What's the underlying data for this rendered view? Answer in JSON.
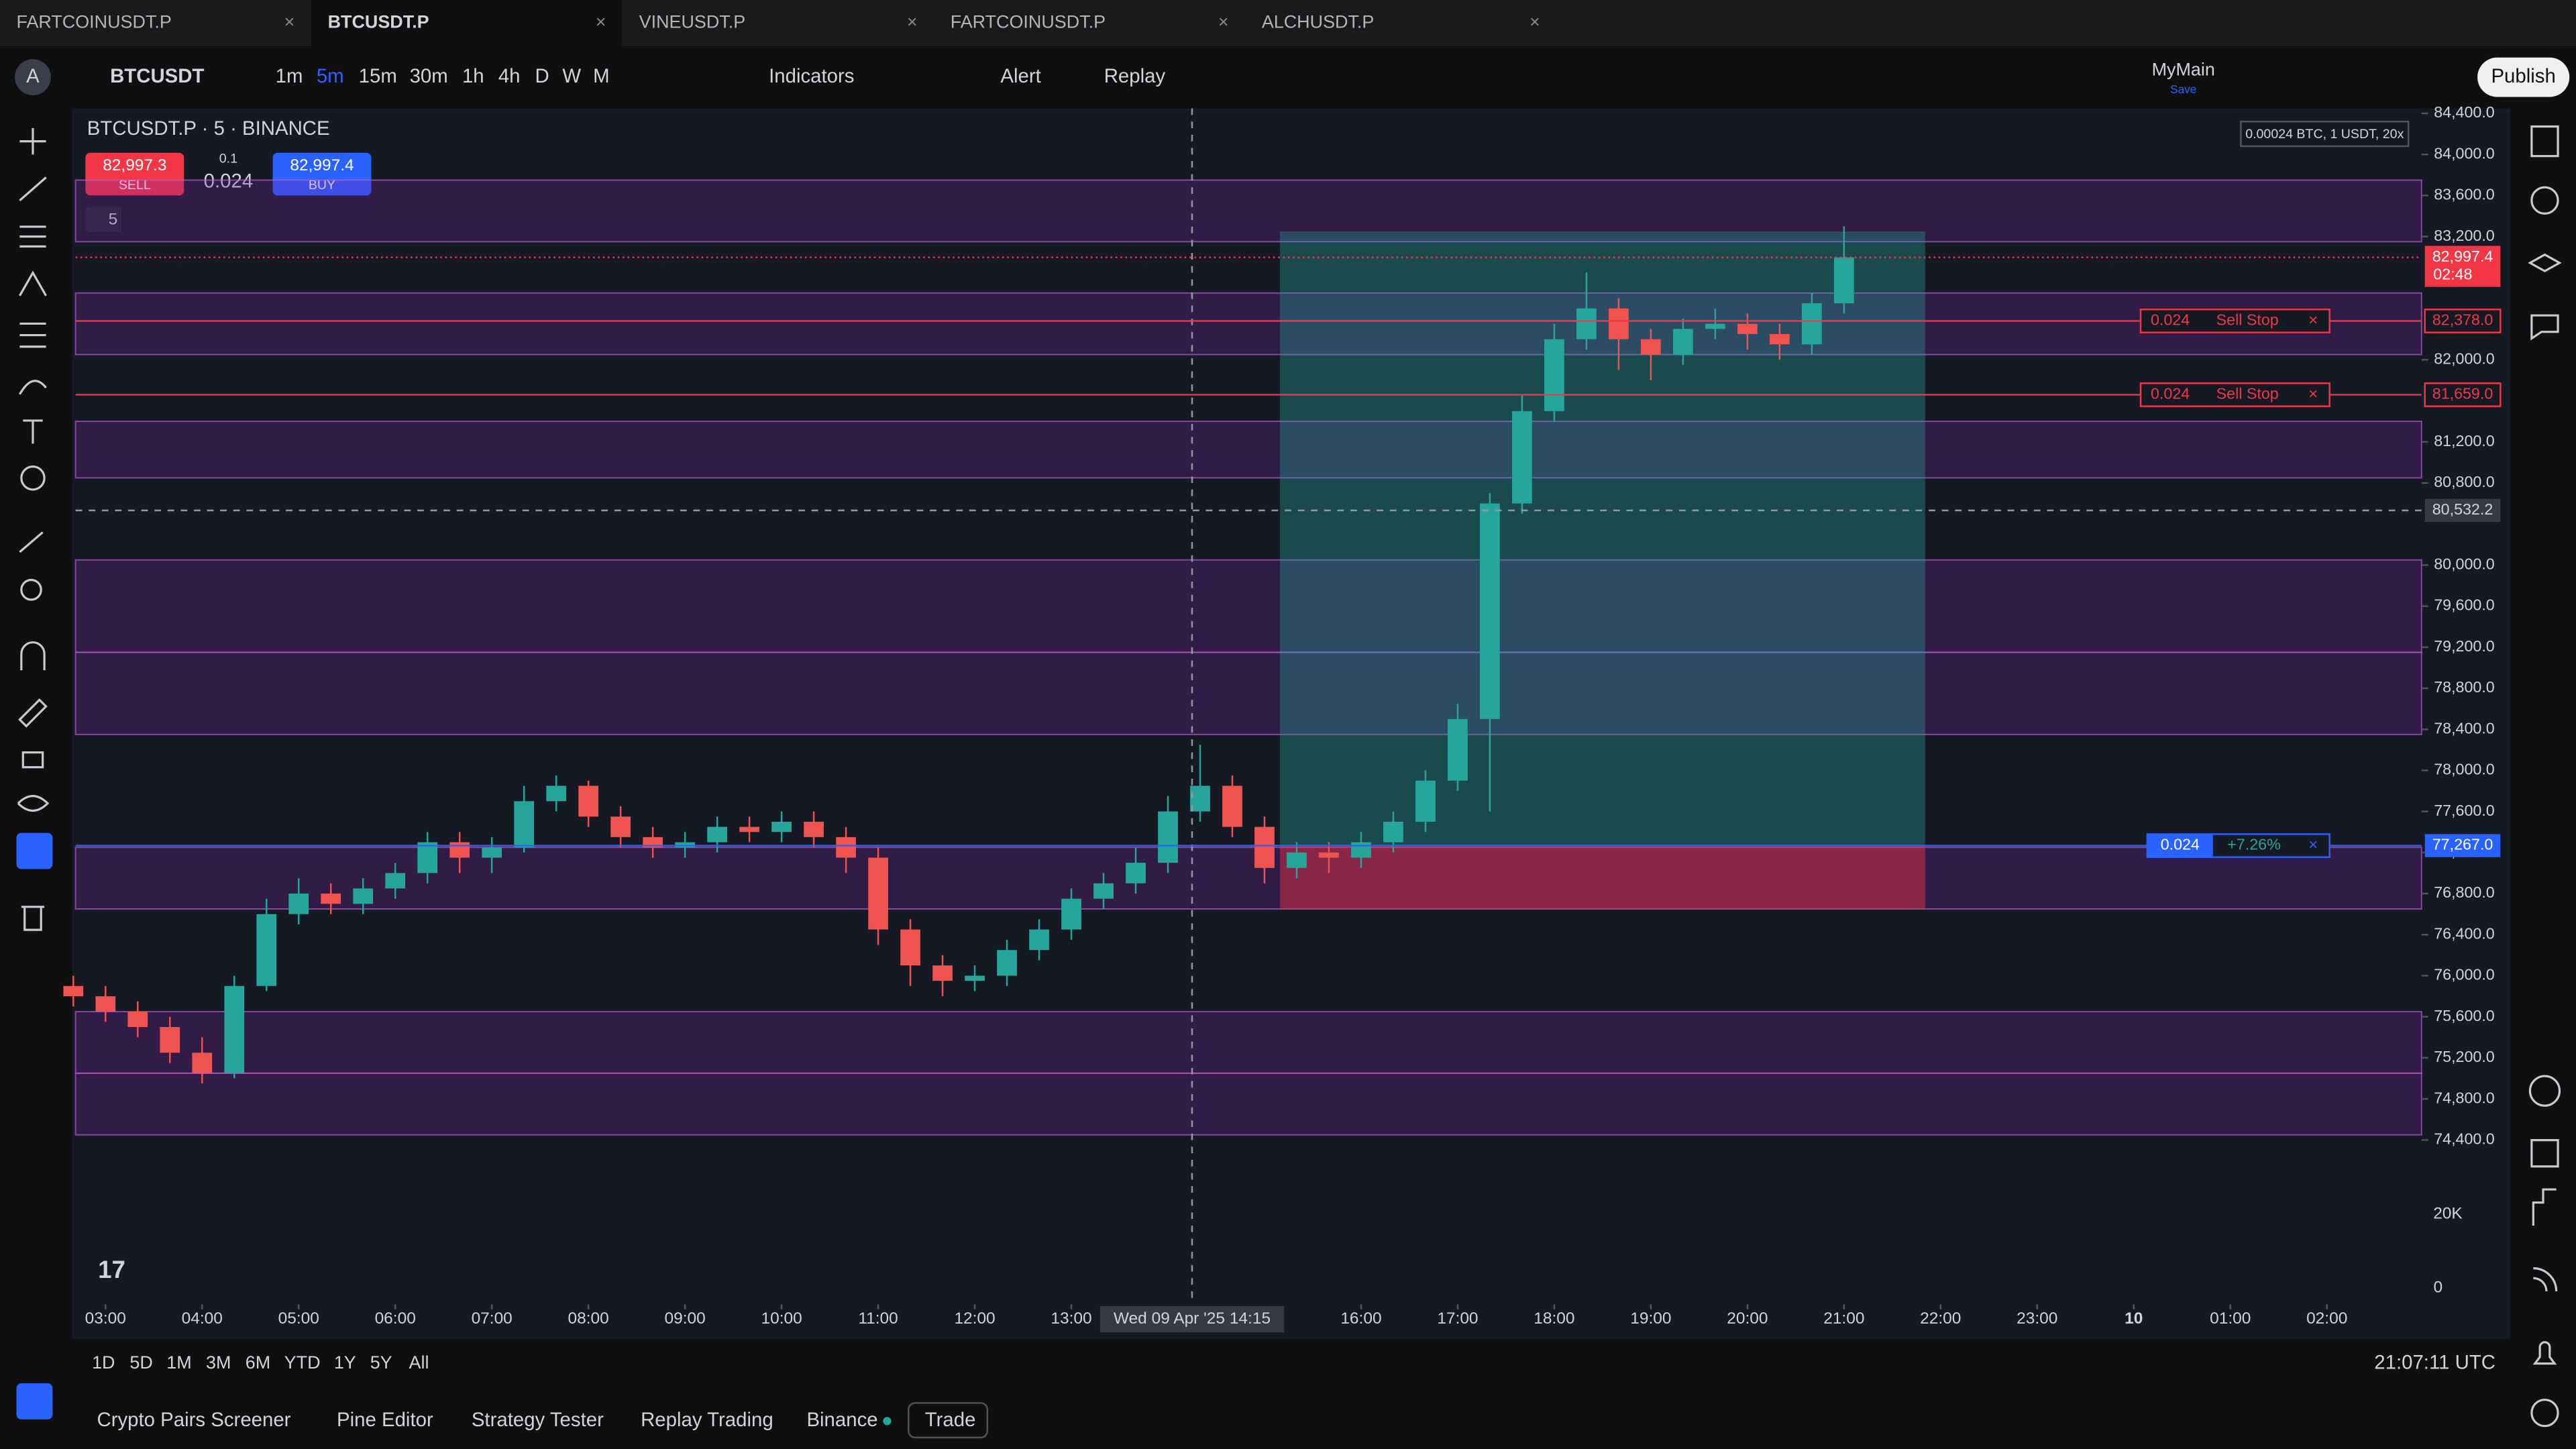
{
  "tabs": [
    "FARTCOINUSDT.P",
    "BTCUSDT.P",
    "VINEUSDT.P",
    "FARTCOINUSDT.P",
    "ALCHUSDT.P"
  ],
  "toolbar": {
    "symbol": "BTCUSDT",
    "intervals": [
      "1m",
      "5m",
      "15m",
      "30m",
      "1h",
      "4h",
      "D",
      "W",
      "M"
    ],
    "indicators": "Indicators",
    "alert": "Alert",
    "replay": "Replay",
    "layout_name": "MyMain",
    "layout_status": "Save",
    "publish": "Publish"
  },
  "legend": {
    "title": "BTCUSDT.P · 5 · BINANCE",
    "sell_price": "82,997.3",
    "sell": "SELL",
    "step": "0.1",
    "qty": "0.024",
    "buy_price": "82,997.4",
    "buy": "BUY",
    "indicator_count": "5"
  },
  "order_info": "0.00024 BTC, 1 USDT, 20x",
  "chart_data": {
    "type": "candlestick",
    "up_color": "#26a69a",
    "down_color": "#ef5350",
    "x": [
      "02:40",
      "03:00",
      "03:20",
      "03:40",
      "04:00",
      "04:20",
      "04:40",
      "05:00",
      "05:20",
      "05:40",
      "06:00",
      "06:20",
      "06:40",
      "07:00",
      "07:20",
      "07:40",
      "08:00",
      "08:20",
      "08:40",
      "09:00",
      "09:20",
      "09:40",
      "10:00",
      "10:20",
      "10:40",
      "11:00",
      "11:20",
      "11:40",
      "12:00",
      "12:20",
      "12:40",
      "13:00",
      "13:20",
      "13:40",
      "14:00",
      "14:20",
      "14:40",
      "15:00",
      "15:20",
      "15:40",
      "16:00",
      "16:20",
      "16:40",
      "17:00",
      "17:20",
      "17:40",
      "18:00",
      "18:20",
      "18:40",
      "19:00",
      "19:20",
      "19:40",
      "20:00",
      "20:20",
      "20:40",
      "21:00"
    ],
    "open": [
      75900,
      75800,
      75650,
      75500,
      75250,
      75050,
      75900,
      76600,
      76800,
      76700,
      76850,
      77000,
      77300,
      77150,
      77250,
      77700,
      77850,
      77550,
      77350,
      77250,
      77300,
      77450,
      77400,
      77500,
      77350,
      77150,
      76450,
      76100,
      75950,
      76000,
      76250,
      76450,
      76750,
      76900,
      77100,
      77600,
      77850,
      77450,
      77050,
      77200,
      77150,
      77300,
      77500,
      77900,
      78500,
      80600,
      81500,
      82200,
      82500,
      82200,
      82050,
      82300,
      82350,
      82250,
      82150,
      82550
    ],
    "high": [
      76000,
      75900,
      75750,
      75600,
      75400,
      76000,
      76750,
      76950,
      76900,
      76950,
      77100,
      77400,
      77400,
      77350,
      77850,
      77950,
      77900,
      77650,
      77450,
      77400,
      77550,
      77550,
      77600,
      77600,
      77450,
      77250,
      76550,
      76200,
      76100,
      76350,
      76550,
      76850,
      77000,
      77250,
      77750,
      78250,
      77950,
      77550,
      77300,
      77300,
      77400,
      77600,
      78000,
      78650,
      80700,
      81650,
      82350,
      82850,
      82600,
      82300,
      82400,
      82500,
      82450,
      82350,
      82650,
      83300
    ],
    "low": [
      75700,
      75550,
      75400,
      75150,
      74950,
      75000,
      75850,
      76500,
      76600,
      76600,
      76750,
      76900,
      77000,
      77000,
      77200,
      77600,
      77450,
      77250,
      77150,
      77150,
      77200,
      77300,
      77300,
      77250,
      77000,
      76300,
      75900,
      75800,
      75850,
      75900,
      76150,
      76350,
      76650,
      76800,
      77000,
      77500,
      77350,
      76900,
      76950,
      77000,
      77050,
      77200,
      77400,
      77800,
      77600,
      80500,
      81400,
      82100,
      81900,
      81800,
      81950,
      82200,
      82100,
      82000,
      82050,
      82450
    ],
    "close": [
      75800,
      75650,
      75500,
      75250,
      75050,
      75900,
      76600,
      76800,
      76700,
      76850,
      77000,
      77300,
      77150,
      77250,
      77700,
      77850,
      77550,
      77350,
      77250,
      77300,
      77450,
      77400,
      77500,
      77350,
      77150,
      76450,
      76100,
      75950,
      76000,
      76250,
      76450,
      76750,
      76900,
      77100,
      77600,
      77850,
      77450,
      77050,
      77200,
      77150,
      77300,
      77500,
      77900,
      78500,
      80600,
      81500,
      82200,
      82500,
      82200,
      82050,
      82300,
      82350,
      82250,
      82150,
      82550,
      82997
    ],
    "ylim": [
      72830,
      84480
    ],
    "xlim": [
      2.69,
      26.98
    ],
    "yticks": [
      {
        "value": 84400,
        "label": "84,400.0"
      },
      {
        "value": 84000,
        "label": "84,000.0"
      },
      {
        "value": 83600,
        "label": "83,600.0"
      },
      {
        "value": 83200,
        "label": "83,200.0"
      },
      {
        "value": 82000,
        "label": "82,000.0"
      },
      {
        "value": 81200,
        "label": "81,200.0"
      },
      {
        "value": 80800,
        "label": "80,800.0"
      },
      {
        "value": 80000,
        "label": "80,000.0"
      },
      {
        "value": 79600,
        "label": "79,600.0"
      },
      {
        "value": 79200,
        "label": "79,200.0"
      },
      {
        "value": 78800,
        "label": "78,800.0"
      },
      {
        "value": 78400,
        "label": "78,400.0"
      },
      {
        "value": 78000,
        "label": "78,000.0"
      },
      {
        "value": 77600,
        "label": "77,600.0"
      },
      {
        "value": 77200,
        "label": "77,200.0"
      },
      {
        "value": 76800,
        "label": "76,800.0"
      },
      {
        "value": 76400,
        "label": "76,400.0"
      },
      {
        "value": 76000,
        "label": "76,000.0"
      },
      {
        "value": 75600,
        "label": "75,600.0"
      },
      {
        "value": 75200,
        "label": "75,200.0"
      },
      {
        "value": 74800,
        "label": "74,800.0"
      },
      {
        "value": 74400,
        "label": "74,400.0"
      }
    ],
    "xticks": [
      {
        "value": 3,
        "label": "03:00"
      },
      {
        "value": 4,
        "label": "04:00"
      },
      {
        "value": 5,
        "label": "05:00"
      },
      {
        "value": 6,
        "label": "06:00"
      },
      {
        "value": 7,
        "label": "07:00"
      },
      {
        "value": 8,
        "label": "08:00"
      },
      {
        "value": 9,
        "label": "09:00"
      },
      {
        "value": 10,
        "label": "10:00"
      },
      {
        "value": 11,
        "label": "11:00"
      },
      {
        "value": 12,
        "label": "12:00"
      },
      {
        "value": 13,
        "label": "13:00"
      },
      {
        "value": 16,
        "label": "16:00"
      },
      {
        "value": 17,
        "label": "17:00"
      },
      {
        "value": 18,
        "label": "18:00"
      },
      {
        "value": 19,
        "label": "19:00"
      },
      {
        "value": 20,
        "label": "20:00"
      },
      {
        "value": 21,
        "label": "21:00"
      },
      {
        "value": 22,
        "label": "22:00"
      },
      {
        "value": 23,
        "label": "23:00"
      },
      {
        "value": 24,
        "label": "10"
      },
      {
        "value": 25,
        "label": "01:00"
      },
      {
        "value": 26,
        "label": "02:00"
      }
    ],
    "zones": [
      [
        83150,
        83750
      ],
      [
        82050,
        82650
      ],
      [
        80850,
        81400
      ],
      [
        79150,
        80050
      ],
      [
        78350,
        79150
      ],
      [
        76650,
        77250
      ],
      [
        75050,
        75650
      ],
      [
        74450,
        75050
      ]
    ],
    "zone_color": "#7b1fa2"
  },
  "orders": [
    {
      "qty": "0.024",
      "label": "Sell Stop",
      "price": 82378,
      "price_label": "82,378.0"
    },
    {
      "qty": "0.024",
      "label": "Sell Stop",
      "price": 81659,
      "price_label": "81,659.0"
    }
  ],
  "position": {
    "qty": "0.024",
    "pnl": "+7.26%",
    "entry": 77267,
    "entry_label": "77,267.0",
    "target": 83250,
    "stop": 76650,
    "start": 15.16,
    "end": 21.84
  },
  "last_price": {
    "value": 82997.4,
    "label": "82,997.4",
    "countdown": "02:48"
  },
  "crosshair": {
    "price": 80532.2,
    "price_label": "80,532.2",
    "time": 14.25,
    "time_label": "Wed 09 Apr '25   14:15"
  },
  "volume_axis": [
    "20K",
    "0"
  ],
  "ranges": [
    "1D",
    "5D",
    "1M",
    "3M",
    "6M",
    "YTD",
    "1Y",
    "5Y",
    "All"
  ],
  "clock": "21:07:11 UTC",
  "bottom_tabs": [
    "Crypto Pairs Screener",
    "Pine Editor",
    "Strategy Tester",
    "Replay Trading",
    "Binance",
    "Trade"
  ]
}
